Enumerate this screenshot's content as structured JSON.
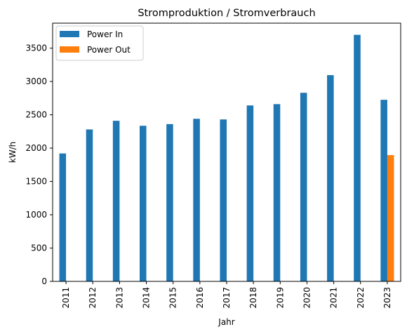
{
  "chart_data": {
    "type": "bar",
    "title": "Stromproduktion / Stromverbrauch",
    "xlabel": "Jahr",
    "ylabel": "kW/h",
    "categories": [
      "2011",
      "2012",
      "2013",
      "2014",
      "2015",
      "2016",
      "2017",
      "2018",
      "2019",
      "2020",
      "2021",
      "2022",
      "2023"
    ],
    "series": [
      {
        "name": "Power In",
        "color": "#1f77b4",
        "values": [
          1920,
          2280,
          2410,
          2335,
          2360,
          2440,
          2430,
          2640,
          2660,
          2830,
          3095,
          3700,
          2725
        ]
      },
      {
        "name": "Power Out",
        "color": "#ff7f0e",
        "values": [
          0,
          0,
          0,
          0,
          0,
          0,
          0,
          0,
          0,
          0,
          0,
          0,
          1895
        ]
      }
    ],
    "ylim": [
      0,
      3875
    ],
    "yticks": [
      0,
      500,
      1000,
      1500,
      2000,
      2500,
      3000,
      3500
    ],
    "legend": "top-left",
    "grid": false
  }
}
